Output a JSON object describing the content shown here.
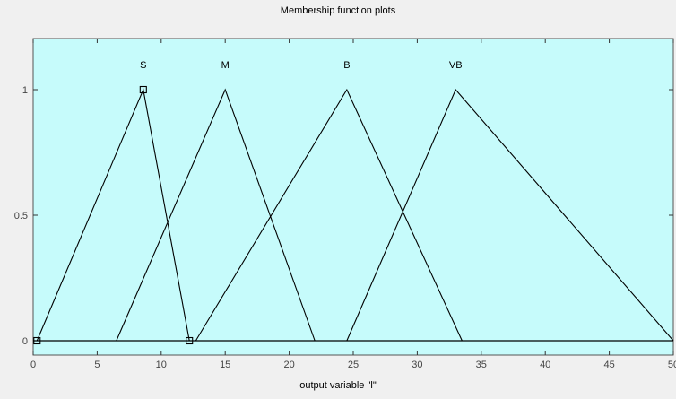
{
  "figure": {
    "panel_title": "Membership function plots",
    "colors": {
      "background": "#f0f0f0",
      "plot_background": "#c6fbfb",
      "line": "#000000",
      "frame": "#555555"
    }
  },
  "chart_data": {
    "type": "line",
    "title": "Membership function plots",
    "xlabel": "output variable \"l\"",
    "ylabel": "",
    "xlim": [
      0,
      50
    ],
    "ylim": [
      0,
      1.2
    ],
    "xticks": [
      0,
      5,
      10,
      15,
      20,
      25,
      30,
      35,
      40,
      45,
      50
    ],
    "xtick_labels": [
      "0",
      "5",
      "10",
      "15",
      "20",
      "25",
      "30",
      "35",
      "40",
      "45",
      "50"
    ],
    "yticks": [
      0,
      0.5,
      1
    ],
    "ytick_labels": [
      "0",
      "0.5",
      "1"
    ],
    "grid": false,
    "series": [
      {
        "name": "S",
        "x": [
          0.3,
          8.6,
          12.2
        ],
        "y": [
          0,
          1,
          0
        ],
        "selected": true
      },
      {
        "name": "M",
        "x": [
          6.5,
          15.0,
          22.0
        ],
        "y": [
          0,
          1,
          0
        ],
        "selected": false
      },
      {
        "name": "B",
        "x": [
          12.7,
          24.5,
          33.5
        ],
        "y": [
          0,
          1,
          0
        ],
        "selected": false
      },
      {
        "name": "VB",
        "x": [
          24.5,
          33.0,
          50.0
        ],
        "y": [
          0,
          1,
          0
        ],
        "selected": false
      }
    ],
    "label_y": 1.1
  }
}
